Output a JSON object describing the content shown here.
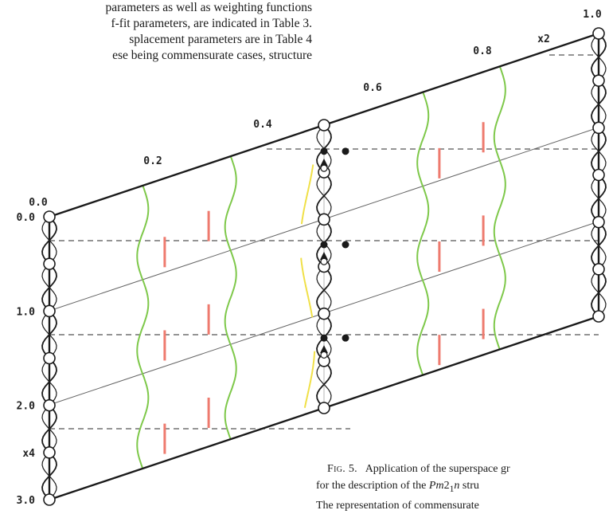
{
  "body_text": {
    "lines": [
      "parameters as well as weighting functions",
      "f-fit parameters, are indicated in Table 3.",
      "splacement parameters are in Table 4",
      "ese being commensurate cases, structure"
    ]
  },
  "figure": {
    "top_labels": [
      "0.0",
      "0.2",
      "0.4",
      "0.6",
      "0.8",
      "1.0"
    ],
    "top_multiplier": "x2",
    "left_labels": [
      "0.0",
      "1.0",
      "2.0",
      "3.0"
    ],
    "left_multiplier": "x4",
    "colors": {
      "frame": "#1a1a1a",
      "green_curve": "#7ec84a",
      "yellow_curve": "#f0e048",
      "red_tick": "#ee7a6e",
      "dashed": "#555555"
    }
  },
  "caption": {
    "label": "Fig. 5.",
    "line1": "Application of the superspace gr",
    "line2_prefix": "for the description of the ",
    "line2_group_a": "Pm",
    "line2_group_sub": "2",
    "line2_group_sub2": "1",
    "line2_group_b": "n",
    "line2_suffix": " stru",
    "line3": "The  representation  of  commensurate"
  }
}
